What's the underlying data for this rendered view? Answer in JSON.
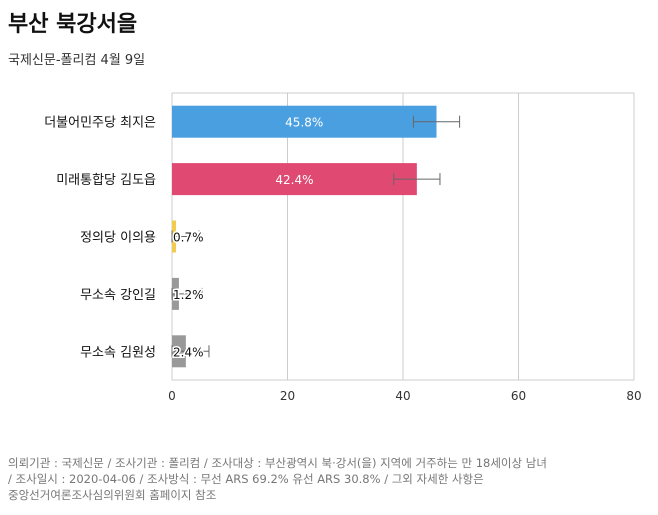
{
  "header": {
    "title": "부산 북강서을",
    "subtitle": "국제신문-폴리컴 4월 9일"
  },
  "chart_data": {
    "type": "bar",
    "orientation": "horizontal",
    "categories": [
      "더불어민주당 최지은",
      "미래통합당 김도읍",
      "정의당 이의용",
      "무소속 강인길",
      "무소속 김원성"
    ],
    "values": [
      45.8,
      42.4,
      0.7,
      1.2,
      2.4
    ],
    "data_labels": [
      "45.8%",
      "42.4%",
      "0.7%",
      "1.2%",
      "2.4%"
    ],
    "error_margin": 4,
    "colors": [
      "#4a9fe0",
      "#e04a72",
      "#f2cc50",
      "#999999",
      "#999999"
    ],
    "xlim": [
      0,
      80
    ],
    "xticks": [
      0,
      20,
      40,
      60,
      80
    ],
    "grid": true,
    "legend": false
  },
  "footer": {
    "line1": "의뢰기관 : 국제신문 / 조사기관 : 폴리컴 / 조사대상 : 부산광역시 북·강서(을) 지역에 거주하는 만 18세이상 남녀",
    "line2": "/ 조사일시 : 2020-04-06 / 조사방식 : 무선 ARS 69.2% 유선 ARS 30.8% / 그외 자세한 사항은",
    "line3": "중앙선거여론조사심의위원회 홈페이지 참조"
  }
}
